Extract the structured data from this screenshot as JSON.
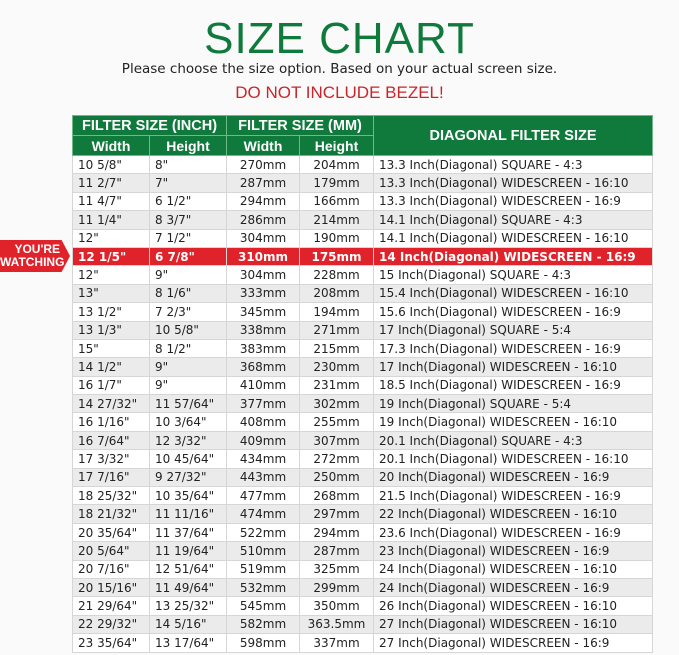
{
  "title": "SIZE CHART",
  "subtitle": "Please choose the size option. Based on your actual screen size.",
  "warning": "DO NOT INCLUDE BEZEL!",
  "badge": {
    "line1": "YOU'RE",
    "line2": "WATCHING",
    "color": "#e0222a"
  },
  "colors": {
    "header": "#0f7a3c",
    "highlight": "#e0222a"
  },
  "headers": {
    "inch": "FILTER SIZE (INCH)",
    "mm": "FILTER SIZE (MM)",
    "diagonal": "DIAGONAL FILTER SIZE",
    "width": "Width",
    "height": "Height"
  },
  "highlight_row": 5,
  "rows": [
    [
      "10 5/8\"",
      "8\"",
      "270mm",
      "204mm",
      "13.3 Inch(Diagonal) SQUARE - 4:3"
    ],
    [
      "11 2/7\"",
      "7\"",
      "287mm",
      "179mm",
      "13.3 Inch(Diagonal) WIDESCREEN - 16:10"
    ],
    [
      "11 4/7\"",
      "6 1/2\"",
      "294mm",
      "166mm",
      "13.3 Inch(Diagonal) WIDESCREEN - 16:9"
    ],
    [
      "11 1/4\"",
      "8 3/7\"",
      "286mm",
      "214mm",
      "14.1 Inch(Diagonal) SQUARE - 4:3"
    ],
    [
      "12\"",
      "7 1/2\"",
      "304mm",
      "190mm",
      "14.1 Inch(Diagonal) WIDESCREEN - 16:10"
    ],
    [
      "12 1/5\"",
      "6 7/8\"",
      "310mm",
      "175mm",
      "14 Inch(Diagonal) WIDESCREEN - 16:9"
    ],
    [
      "12\"",
      "9\"",
      "304mm",
      "228mm",
      "15 Inch(Diagonal) SQUARE - 4:3"
    ],
    [
      "13\"",
      "8 1/6\"",
      "333mm",
      "208mm",
      "15.4 Inch(Diagonal) WIDESCREEN - 16:10"
    ],
    [
      "13 1/2\"",
      "7 2/3\"",
      "345mm",
      "194mm",
      "15.6 Inch(Diagonal) WIDESCREEN - 16:9"
    ],
    [
      "13 1/3\"",
      "10 5/8\"",
      "338mm",
      "271mm",
      "17 Inch(Diagonal) SQUARE - 5:4"
    ],
    [
      "15\"",
      "8 1/2\"",
      "383mm",
      "215mm",
      "17.3 Inch(Diagonal) WIDESCREEN - 16:9"
    ],
    [
      "14 1/2\"",
      "9\"",
      "368mm",
      "230mm",
      "17 Inch(Diagonal) WIDESCREEN - 16:10"
    ],
    [
      "16 1/7\"",
      "9\"",
      "410mm",
      "231mm",
      "18.5 Inch(Diagonal) WIDESCREEN - 16:9"
    ],
    [
      "14 27/32\"",
      "11 57/64\"",
      "377mm",
      "302mm",
      "19 Inch(Diagonal) SQUARE - 5:4"
    ],
    [
      "16 1/16\"",
      "10 3/64\"",
      "408mm",
      "255mm",
      "19 Inch(Diagonal) WIDESCREEN - 16:10"
    ],
    [
      "16 7/64\"",
      "12 3/32\"",
      "409mm",
      "307mm",
      "20.1 Inch(Diagonal) SQUARE - 4:3"
    ],
    [
      "17 3/32\"",
      "10 45/64\"",
      "434mm",
      "272mm",
      "20.1 Inch(Diagonal) WIDESCREEN - 16:10"
    ],
    [
      "17 7/16\"",
      "9 27/32\"",
      "443mm",
      "250mm",
      "20 Inch(Diagonal) WIDESCREEN - 16:9"
    ],
    [
      "18 25/32\"",
      "10 35/64\"",
      "477mm",
      "268mm",
      "21.5 Inch(Diagonal) WIDESCREEN - 16:9"
    ],
    [
      "18 21/32\"",
      "11 11/16\"",
      "474mm",
      "297mm",
      "22 Inch(Diagonal) WIDESCREEN - 16:10"
    ],
    [
      "20 35/64\"",
      "11 37/64\"",
      "522mm",
      "294mm",
      "23.6 Inch(Diagonal) WIDESCREEN - 16:9"
    ],
    [
      "20 5/64\"",
      "11 19/64\"",
      "510mm",
      "287mm",
      "23 Inch(Diagonal) WIDESCREEN - 16:9"
    ],
    [
      "20 7/16\"",
      "12 51/64\"",
      "519mm",
      "325mm",
      "24 Inch(Diagonal) WIDESCREEN - 16:10"
    ],
    [
      "20 15/16\"",
      "11 49/64\"",
      "532mm",
      "299mm",
      "24 Inch(Diagonal) WIDESCREEN - 16:9"
    ],
    [
      "21 29/64\"",
      "13 25/32\"",
      "545mm",
      "350mm",
      "26 Inch(Diagonal) WIDESCREEN - 16:10"
    ],
    [
      "22 29/32\"",
      "14 5/16\"",
      "582mm",
      "363.5mm",
      "27 Inch(Diagonal) WIDESCREEN - 16:10"
    ],
    [
      "23 35/64\"",
      "13 17/64\"",
      "598mm",
      "337mm",
      "27 Inch(Diagonal) WIDESCREEN - 16:9"
    ]
  ]
}
